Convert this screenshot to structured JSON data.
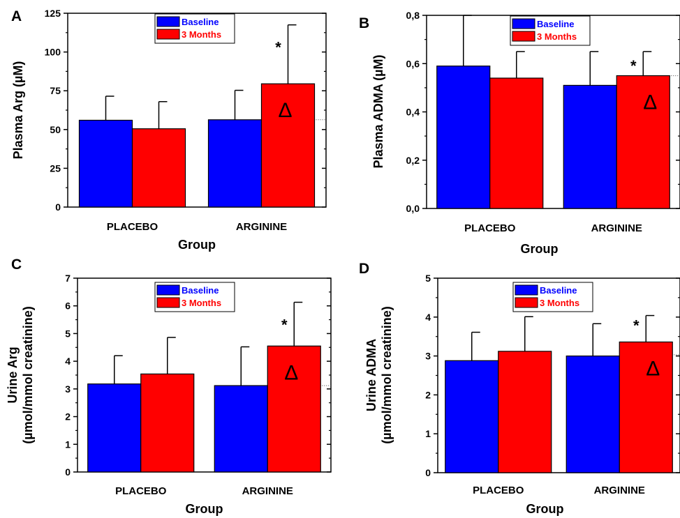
{
  "chart_data": [
    {
      "panel": "A",
      "type": "bar",
      "categories": [
        "PLACEBO",
        "ARGININE"
      ],
      "series": [
        {
          "name": "Baseline",
          "color": "#0000ff",
          "values": [
            56,
            56.3
          ],
          "error": [
            15.5,
            19
          ]
        },
        {
          "name": "3 Months",
          "color": "#ff0000",
          "values": [
            50.5,
            79.5
          ],
          "error": [
            17.5,
            38
          ]
        }
      ],
      "xlabel": "Group",
      "ylabel": [
        "Plasma Arg (µM)"
      ],
      "ylim": [
        0,
        125
      ],
      "ticks": [
        0,
        25,
        50,
        75,
        100,
        125
      ],
      "tick_labels": [
        "0",
        "25",
        "50",
        "75",
        "100",
        "125"
      ],
      "reference_y": 56.3,
      "legend": "top-center",
      "annotations": {
        "star": "*",
        "delta": "Δ"
      }
    },
    {
      "panel": "B",
      "type": "bar",
      "categories": [
        "PLACEBO",
        "ARGININE"
      ],
      "series": [
        {
          "name": "Baseline",
          "color": "#0000ff",
          "values": [
            0.59,
            0.51
          ],
          "error": [
            0.21,
            0.14
          ]
        },
        {
          "name": "3 Months",
          "color": "#ff0000",
          "values": [
            0.54,
            0.55
          ],
          "error": [
            0.11,
            0.1
          ]
        }
      ],
      "xlabel": "Group",
      "ylabel": [
        "Plasma ADMA (µM)"
      ],
      "ylim": [
        0,
        0.8
      ],
      "ticks": [
        0,
        0.2,
        0.4,
        0.6,
        0.8
      ],
      "tick_labels": [
        "0,0",
        "0,2",
        "0,4",
        "0,6",
        "0,8"
      ],
      "reference_y": 0.55,
      "legend": "top-center",
      "annotations": {
        "star": "*",
        "delta": "Δ"
      }
    },
    {
      "panel": "C",
      "type": "bar",
      "categories": [
        "PLACEBO",
        "ARGININE"
      ],
      "series": [
        {
          "name": "Baseline",
          "color": "#0000ff",
          "values": [
            3.18,
            3.12
          ],
          "error": [
            1.02,
            1.4
          ]
        },
        {
          "name": "3 Months",
          "color": "#ff0000",
          "values": [
            3.54,
            4.55
          ],
          "error": [
            1.32,
            1.58
          ]
        }
      ],
      "xlabel": "Group",
      "ylabel": [
        "Urine Arg",
        "(µmol/mmol creatinine)"
      ],
      "ylim": [
        0,
        7
      ],
      "ticks": [
        0,
        1,
        2,
        3,
        4,
        5,
        6,
        7
      ],
      "tick_labels": [
        "0",
        "1",
        "2",
        "3",
        "4",
        "5",
        "6",
        "7"
      ],
      "reference_y": 3.12,
      "legend": "top-center",
      "annotations": {
        "star": "*",
        "delta": "Δ"
      }
    },
    {
      "panel": "D",
      "type": "bar",
      "categories": [
        "PLACEBO",
        "ARGININE"
      ],
      "series": [
        {
          "name": "Baseline",
          "color": "#0000ff",
          "values": [
            2.88,
            3.0
          ],
          "error": [
            0.73,
            0.83
          ]
        },
        {
          "name": "3 Months",
          "color": "#ff0000",
          "values": [
            3.12,
            3.36
          ],
          "error": [
            0.89,
            0.68
          ]
        }
      ],
      "xlabel": "Group",
      "ylabel": [
        "Urine ADMA",
        "(µmol/mmol creatinine)"
      ],
      "ylim": [
        0,
        5
      ],
      "ticks": [
        0,
        1,
        2,
        3,
        4,
        5
      ],
      "tick_labels": [
        "0",
        "1",
        "2",
        "3",
        "4",
        "5"
      ],
      "reference_y": 3.03,
      "legend": "top-center",
      "annotations": {
        "star": "*",
        "delta": "Δ"
      }
    }
  ]
}
